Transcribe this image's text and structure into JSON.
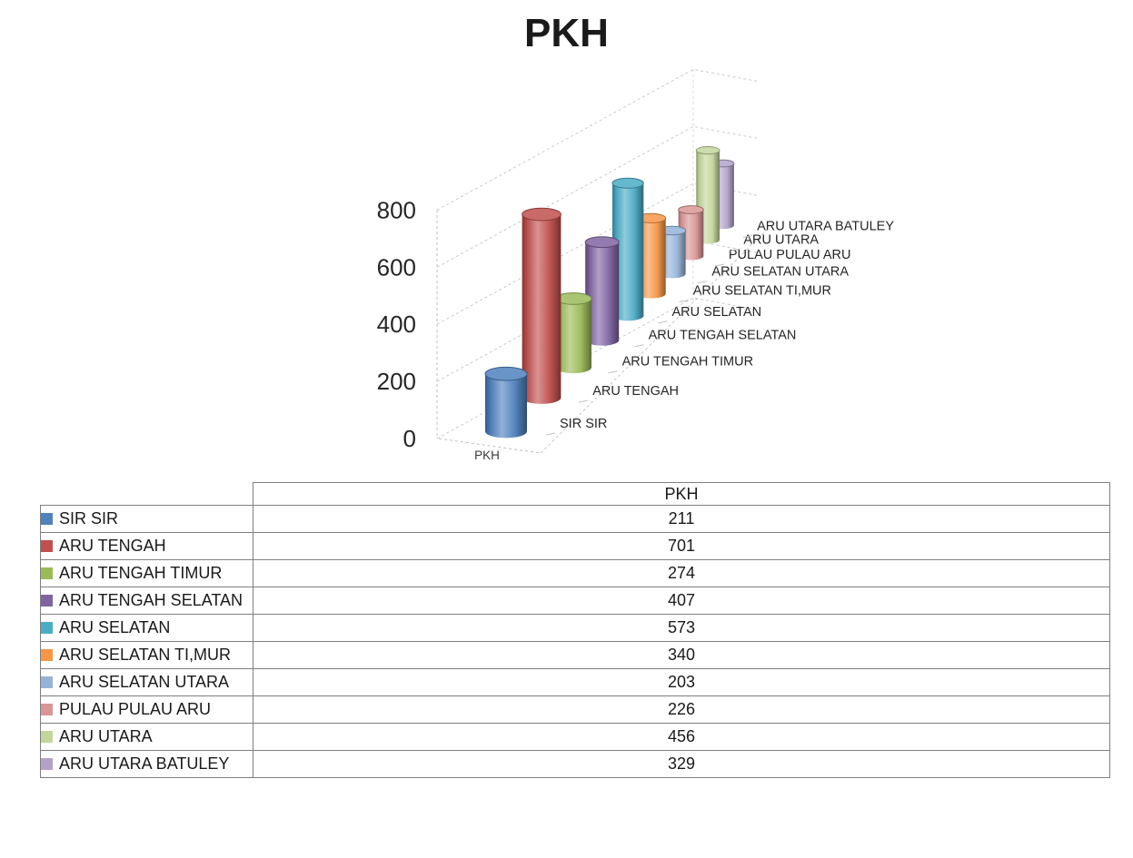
{
  "chart_data": {
    "type": "bar",
    "subtype": "cylinder-3d",
    "title": "PKH",
    "series_label": "PKH",
    "categories": [
      "SIR SIR",
      "ARU TENGAH",
      "ARU TENGAH TIMUR",
      "ARU TENGAH SELATAN",
      "ARU SELATAN",
      "ARU SELATAN TI,MUR",
      "ARU SELATAN UTARA",
      "PULAU PULAU ARU",
      "ARU UTARA",
      "ARU UTARA BATULEY"
    ],
    "values": [
      211,
      701,
      274,
      407,
      573,
      340,
      203,
      226,
      456,
      329
    ],
    "colors": [
      "#4F81BD",
      "#C0504D",
      "#9BBB59",
      "#8064A2",
      "#4BACC6",
      "#F79646",
      "#95B3D7",
      "#D99694",
      "#C3D69B",
      "#B2A2C7"
    ],
    "xlabel": "",
    "ylabel": "",
    "ylim": [
      0,
      800
    ],
    "yticks": [
      0,
      200,
      400,
      600,
      800
    ],
    "grid": "dashed",
    "legend_position": "none"
  },
  "table": {
    "value_header": "PKH",
    "rows": [
      {
        "label": "SIR SIR",
        "value": "211",
        "color": "#4F81BD"
      },
      {
        "label": "ARU TENGAH",
        "value": "701",
        "color": "#C0504D"
      },
      {
        "label": "ARU TENGAH TIMUR",
        "value": "274",
        "color": "#9BBB59"
      },
      {
        "label": "ARU TENGAH SELATAN",
        "value": "407",
        "color": "#8064A2"
      },
      {
        "label": "ARU SELATAN",
        "value": "573",
        "color": "#4BACC6"
      },
      {
        "label": "ARU SELATAN TI,MUR",
        "value": "340",
        "color": "#F79646"
      },
      {
        "label": "ARU SELATAN UTARA",
        "value": "203",
        "color": "#95B3D7"
      },
      {
        "label": "PULAU PULAU ARU",
        "value": "226",
        "color": "#D99694"
      },
      {
        "label": "ARU UTARA",
        "value": "456",
        "color": "#C3D69B"
      },
      {
        "label": "ARU UTARA BATULEY",
        "value": "329",
        "color": "#B2A2C7"
      }
    ]
  }
}
